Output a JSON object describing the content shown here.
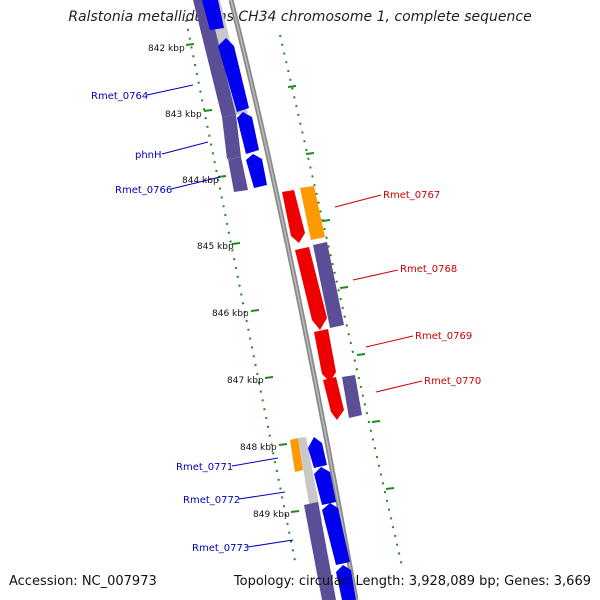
{
  "title": "Ralstonia metallidurans CH34 chromosome 1, complete sequence",
  "footer": {
    "accession": "Accession: NC_007973",
    "summary": "Topology: circular; Length: 3,928,089 bp; Genes: 3,669"
  },
  "colors": {
    "forward_cds": "#0000ee",
    "backbone_gene": "#5a4e96",
    "reverse_cds": "#ee0000",
    "rna_gene": "#ff9900",
    "other_gene": "#c8c8c8",
    "ruler": "#228822",
    "left_label": "#0000bb",
    "right_label": "#cc0000",
    "backbone": "#888888"
  },
  "ruler_labels": [
    "842 kbp",
    "843 kbp",
    "844 kbp",
    "845 kbp",
    "846 kbp",
    "847 kbp",
    "848 kbp",
    "849 kbp"
  ],
  "left_gene_labels": [
    "Rmet_0764",
    "phnH",
    "Rmet_0766",
    "Rmet_0771",
    "Rmet_0772",
    "Rmet_0773"
  ],
  "right_gene_labels": [
    "Rmet_0767",
    "Rmet_0768",
    "Rmet_0769",
    "Rmet_0770"
  ]
}
